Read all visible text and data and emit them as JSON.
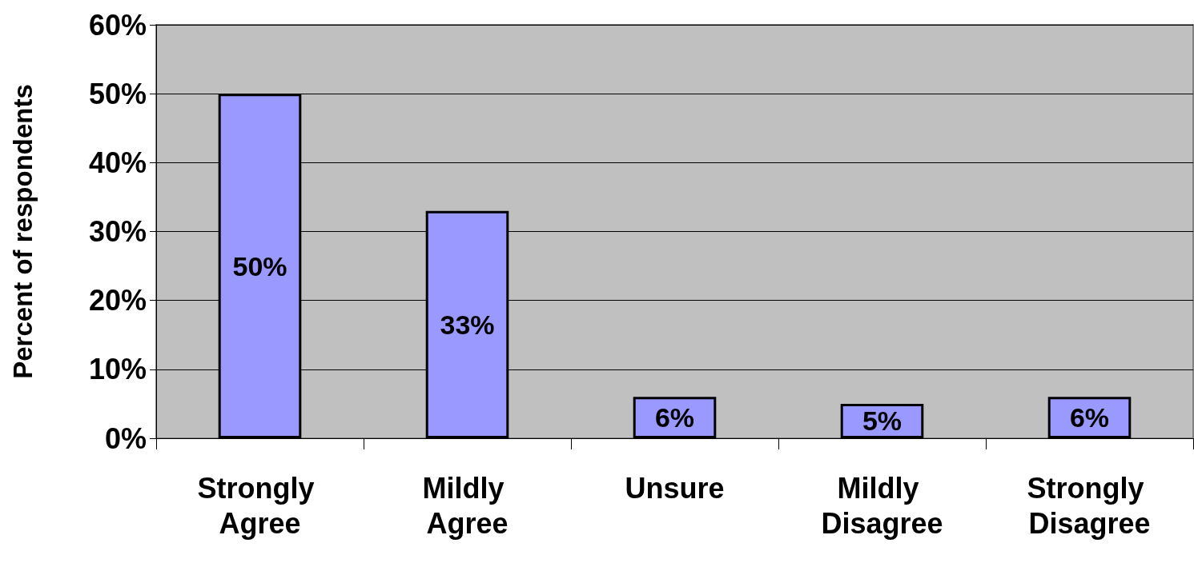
{
  "chart_data": {
    "type": "bar",
    "ylabel": "Percent of respondents",
    "categories": [
      "Strongly Agree",
      "Mildly Agree",
      "Unsure",
      "Mildly Disagree",
      "Strongly Disagree"
    ],
    "values": [
      50,
      33,
      6,
      5,
      6
    ],
    "value_labels": [
      "50%",
      "33%",
      "6%",
      "5%",
      "6%"
    ],
    "color": "#9999ff",
    "ylim": [
      0,
      60
    ],
    "yticks": [
      {
        "value": 0,
        "label": "0%"
      },
      {
        "value": 10,
        "label": "10%"
      },
      {
        "value": 20,
        "label": "20%"
      },
      {
        "value": 30,
        "label": "30%"
      },
      {
        "value": 40,
        "label": "40%"
      },
      {
        "value": 50,
        "label": "50%"
      },
      {
        "value": 60,
        "label": "60%"
      }
    ],
    "grid": "y"
  }
}
